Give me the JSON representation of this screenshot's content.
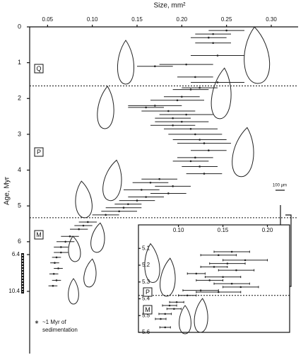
{
  "chart_data": [
    {
      "type": "errorbar",
      "x_label": "Size, mm²",
      "y_label": "Age, Myr",
      "xlim": [
        0.03,
        0.33
      ],
      "xticks": [
        {
          "value": 0.05,
          "label": "0.05"
        },
        {
          "value": 0.1,
          "label": "0.10"
        },
        {
          "value": 0.15,
          "label": "0.15"
        },
        {
          "value": 0.2,
          "label": "0.20"
        },
        {
          "value": 0.25,
          "label": "0.25"
        },
        {
          "value": 0.3,
          "label": "0.30"
        }
      ],
      "ylim": [
        0,
        6.3
      ],
      "yticks": [
        0,
        1,
        2,
        3,
        4,
        5,
        6
      ],
      "epochs": [
        "Q",
        "P",
        "M"
      ],
      "boundaries": [
        1.65,
        5.33
      ],
      "color": "#222222",
      "y": [
        0.1,
        0.2,
        0.3,
        0.45,
        0.8,
        1.05,
        1.1,
        1.4,
        1.55,
        1.7,
        1.75,
        1.95,
        2.05,
        2.2,
        2.25,
        2.35,
        2.45,
        2.55,
        2.65,
        2.75,
        2.85,
        3.0,
        3.15,
        3.25,
        3.45,
        3.65,
        3.75,
        3.9,
        4.1,
        4.25,
        4.35,
        4.45,
        4.55,
        4.65,
        4.75,
        4.85,
        4.95,
        5.05,
        5.15,
        5.25,
        5.45,
        5.55,
        5.65,
        5.85,
        6.0,
        6.15,
        6.3
      ],
      "values": [
        0.25,
        0.235,
        0.23,
        0.235,
        0.24,
        0.205,
        0.17,
        0.215,
        0.24,
        0.22,
        0.21,
        0.2,
        0.195,
        0.17,
        0.16,
        0.185,
        0.205,
        0.19,
        0.2,
        0.19,
        0.21,
        0.215,
        0.22,
        0.225,
        0.23,
        0.215,
        0.21,
        0.22,
        0.225,
        0.175,
        0.165,
        0.19,
        0.155,
        0.185,
        0.16,
        0.15,
        0.14,
        0.135,
        0.13,
        0.115,
        0.095,
        0.09,
        0.085,
        0.075,
        0.07,
        0.065,
        0.065
      ],
      "errors": [
        0.02,
        0.02,
        0.02,
        0.02,
        0.03,
        0.03,
        0.02,
        0.02,
        0.03,
        0.02,
        0.02,
        0.02,
        0.03,
        0.03,
        0.02,
        0.03,
        0.03,
        0.02,
        0.03,
        0.025,
        0.03,
        0.03,
        0.03,
        0.03,
        0.02,
        0.02,
        0.02,
        0.02,
        0.02,
        0.02,
        0.02,
        0.02,
        0.02,
        0.02,
        0.02,
        0.02,
        0.015,
        0.02,
        0.02,
        0.015,
        0.01,
        0.01,
        0.01,
        0.01,
        0.01,
        0.008,
        0.008
      ],
      "broken_section": {
        "ylim": [
          6.4,
          10.4
        ],
        "yticks": [
          6.4,
          10.4
        ],
        "y": [
          6.7,
          7.3,
          7.9,
          8.5,
          9.2,
          9.8
        ],
        "values": [
          0.06,
          0.058,
          0.062,
          0.057,
          0.06,
          0.056
        ],
        "errors": [
          0.005,
          0.005,
          0.005,
          0.005,
          0.005,
          0.005
        ]
      },
      "annotation_marker": "∗",
      "annotation": [
        "~1 Myr of",
        "sedimentation"
      ],
      "scale_label": "100 μm"
    },
    {
      "type": "errorbar",
      "xlim": [
        0.055,
        0.225
      ],
      "xticks": [
        {
          "value": 0.1,
          "label": "0.10"
        },
        {
          "value": 0.15,
          "label": "0.15"
        },
        {
          "value": 0.2,
          "label": "0.20"
        }
      ],
      "ylim": [
        4.96,
        5.6
      ],
      "yticks": [
        5.1,
        5.2,
        5.3,
        5.4,
        5.5,
        5.6
      ],
      "epochs": [
        "P",
        "M"
      ],
      "boundaries": [
        5.38
      ],
      "color": "#222222",
      "y": [
        5.12,
        5.14,
        5.17,
        5.19,
        5.21,
        5.23,
        5.25,
        5.27,
        5.29,
        5.31,
        5.33,
        5.35,
        5.36,
        5.38,
        5.42,
        5.44,
        5.46,
        5.49,
        5.52,
        5.57
      ],
      "values": [
        0.16,
        0.145,
        0.175,
        0.155,
        0.14,
        0.165,
        0.12,
        0.15,
        0.135,
        0.16,
        0.17,
        0.125,
        0.145,
        0.11,
        0.098,
        0.09,
        0.095,
        0.085,
        0.08,
        0.085
      ],
      "errors": [
        0.02,
        0.02,
        0.025,
        0.02,
        0.015,
        0.02,
        0.01,
        0.02,
        0.015,
        0.02,
        0.02,
        0.02,
        0.025,
        0.01,
        0.008,
        0.008,
        0.008,
        0.007,
        0.006,
        0.006
      ]
    }
  ]
}
